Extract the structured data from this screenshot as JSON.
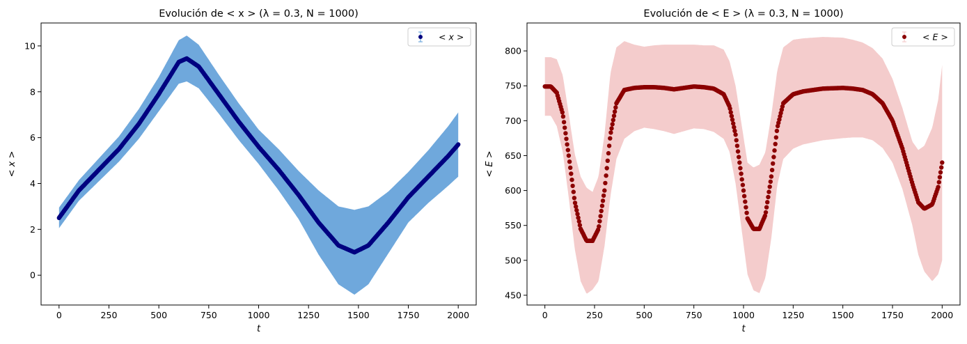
{
  "chart_data": [
    {
      "type": "scatter",
      "title": "Evolución de  < x >  (λ = 0.3, N = 1000)",
      "xlabel": "t",
      "ylabel": "< x >",
      "xlim": [
        -90,
        2090
      ],
      "ylim": [
        -1.3,
        11.0
      ],
      "xticks": [
        0,
        250,
        500,
        750,
        1000,
        1250,
        1500,
        1750,
        2000
      ],
      "yticks": [
        0,
        2,
        4,
        6,
        8,
        10
      ],
      "legend": {
        "position": "top-right",
        "entries": [
          "< x >"
        ]
      },
      "colors": {
        "mean": "#000080",
        "error_band": "#6fa8dc"
      },
      "series": [
        {
          "name": "< x >",
          "t": [
            0,
            100,
            200,
            300,
            400,
            500,
            600,
            640,
            700,
            800,
            900,
            1000,
            1100,
            1200,
            1300,
            1400,
            1480,
            1550,
            1650,
            1750,
            1850,
            1950,
            2000
          ],
          "mean": [
            2.5,
            3.7,
            4.6,
            5.5,
            6.6,
            7.9,
            9.3,
            9.45,
            9.1,
            7.9,
            6.7,
            5.6,
            4.6,
            3.5,
            2.3,
            1.3,
            1.0,
            1.3,
            2.3,
            3.4,
            4.3,
            5.2,
            5.7
          ],
          "err": [
            0.45,
            0.45,
            0.5,
            0.55,
            0.65,
            0.75,
            0.95,
            1.0,
            0.95,
            0.85,
            0.8,
            0.75,
            0.9,
            1.05,
            1.4,
            1.7,
            1.85,
            1.7,
            1.35,
            1.1,
            1.15,
            1.3,
            1.4
          ]
        }
      ]
    },
    {
      "type": "scatter",
      "title": "Evolución de  < E >  (λ = 0.3, N = 1000)",
      "xlabel": "t",
      "ylabel": "< E >",
      "xlim": [
        -90,
        2090
      ],
      "ylim": [
        436,
        840
      ],
      "xticks": [
        0,
        250,
        500,
        750,
        1000,
        1250,
        1500,
        1750,
        2000
      ],
      "yticks": [
        450,
        500,
        550,
        600,
        650,
        700,
        750,
        800
      ],
      "legend": {
        "position": "top-right",
        "entries": [
          "< E >"
        ]
      },
      "colors": {
        "mean": "#8b0000",
        "error_band": "#f4cccc"
      },
      "series": [
        {
          "name": "< E >",
          "t": [
            0,
            30,
            60,
            90,
            120,
            150,
            180,
            210,
            240,
            270,
            300,
            330,
            360,
            400,
            450,
            500,
            550,
            600,
            650,
            700,
            750,
            800,
            850,
            900,
            930,
            960,
            990,
            1020,
            1050,
            1080,
            1110,
            1140,
            1170,
            1200,
            1250,
            1300,
            1400,
            1500,
            1550,
            1600,
            1650,
            1700,
            1750,
            1800,
            1850,
            1880,
            1910,
            1950,
            1980,
            2000
          ],
          "mean": [
            749,
            749,
            740,
            710,
            650,
            585,
            545,
            528,
            528,
            545,
            600,
            680,
            725,
            744,
            747,
            748,
            748,
            747,
            745,
            747,
            749,
            748,
            746,
            738,
            720,
            680,
            620,
            560,
            545,
            545,
            565,
            620,
            690,
            725,
            738,
            742,
            746,
            747,
            746,
            744,
            738,
            725,
            700,
            660,
            610,
            583,
            574,
            580,
            605,
            640
          ],
          "err": [
            42,
            42,
            48,
            55,
            60,
            68,
            75,
            76,
            70,
            75,
            80,
            88,
            80,
            70,
            62,
            58,
            60,
            62,
            64,
            62,
            60,
            60,
            62,
            64,
            65,
            70,
            75,
            80,
            88,
            92,
            90,
            88,
            82,
            80,
            78,
            76,
            74,
            72,
            70,
            68,
            66,
            64,
            60,
            58,
            60,
            75,
            90,
            110,
            125,
            140
          ]
        }
      ]
    }
  ]
}
